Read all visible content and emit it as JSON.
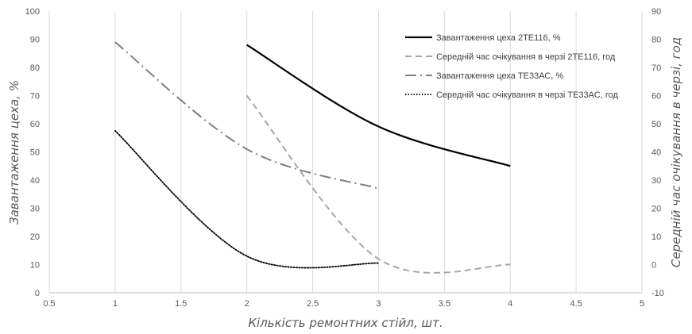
{
  "chart_data": {
    "type": "line",
    "xlabel": "Кількість ремонтних стійл, шт.",
    "ylabel": "Завантаження цеха, %",
    "y2label": "Середній час очікування в черзі, год",
    "xlim": [
      0.5,
      5
    ],
    "ylim": [
      0,
      100
    ],
    "y2lim": [
      -10,
      90
    ],
    "x_ticks": [
      "0.5",
      "1",
      "1.5",
      "2",
      "2.5",
      "3",
      "3.5",
      "4",
      "4.5",
      "5"
    ],
    "y_ticks": [
      "0",
      "10",
      "20",
      "30",
      "40",
      "50",
      "60",
      "70",
      "80",
      "90",
      "100"
    ],
    "y2_ticks": [
      "-10",
      "0",
      "10",
      "20",
      "30",
      "40",
      "50",
      "60",
      "70",
      "80",
      "90"
    ],
    "grid": "vertical",
    "legend_position": "top-right",
    "series": [
      {
        "name": "Завантаження цеха 2ТЕ116, %",
        "axis": "left",
        "color": "#000000",
        "style": "solid",
        "x": [
          2,
          3,
          4
        ],
        "y": [
          88,
          59,
          45
        ]
      },
      {
        "name": "Середній час очікування в черзі 2ТЕ116, год",
        "axis": "right",
        "color": "#a6a6a6",
        "style": "dashed",
        "x": [
          2,
          3,
          4
        ],
        "y": [
          60,
          2,
          0
        ]
      },
      {
        "name": "Завантаження цеха ТЕ33АС, %",
        "axis": "left",
        "color": "#7f7f7f",
        "style": "dashdot",
        "x": [
          1,
          2,
          3
        ],
        "y": [
          89,
          51,
          37
        ]
      },
      {
        "name": "Середній час очікування в черзі ТЕ33АС, год",
        "axis": "right",
        "color": "#000000",
        "style": "dotted",
        "x": [
          1,
          2,
          3
        ],
        "y": [
          47.5,
          3,
          0.5
        ]
      }
    ]
  }
}
